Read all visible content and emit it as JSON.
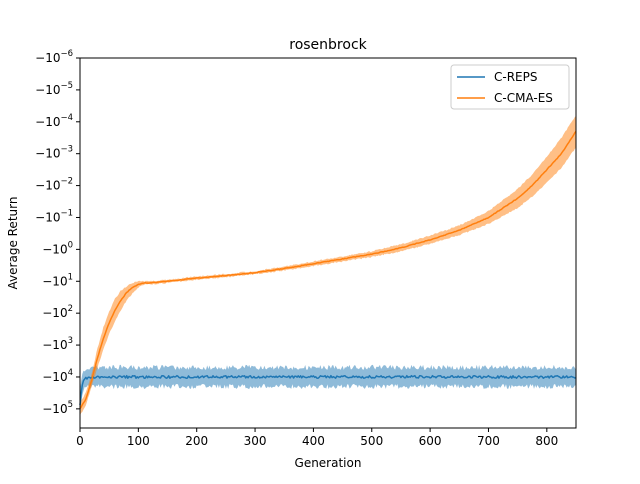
{
  "chart_data": {
    "type": "line",
    "title": "rosenbrock",
    "xlabel": "Generation",
    "ylabel": "Average Return",
    "y_scale": "symlog (negative), exponent axis: value = -10^e",
    "xlim": [
      0,
      850
    ],
    "ylim_exponent": [
      -6,
      5.6
    ],
    "xticks": [
      0,
      100,
      200,
      300,
      400,
      500,
      600,
      700,
      800
    ],
    "xtick_labels": [
      "0",
      "100",
      "200",
      "300",
      "400",
      "500",
      "600",
      "700",
      "800"
    ],
    "yticks_exponent": [
      -6,
      -5,
      -4,
      -3,
      -2,
      -1,
      0,
      1,
      2,
      3,
      4,
      5
    ],
    "ytick_labels": [
      {
        "base": "−10",
        "exp": "−6"
      },
      {
        "base": "−10",
        "exp": "−5"
      },
      {
        "base": "−10",
        "exp": "−4"
      },
      {
        "base": "−10",
        "exp": "−3"
      },
      {
        "base": "−10",
        "exp": "−2"
      },
      {
        "base": "−10",
        "exp": "−1"
      },
      {
        "base": "−10",
        "exp": "0"
      },
      {
        "base": "−10",
        "exp": "1"
      },
      {
        "base": "−10",
        "exp": "2"
      },
      {
        "base": "−10",
        "exp": "3"
      },
      {
        "base": "−10",
        "exp": "4"
      },
      {
        "base": "−10",
        "exp": "5"
      }
    ],
    "legend_position": "top-right",
    "grid": false,
    "series": [
      {
        "name": "C-REPS",
        "color": "#1f77b4",
        "band_color": "#1f77b4",
        "x": [
          0,
          3,
          6,
          10,
          15,
          25,
          50,
          100,
          200,
          300,
          400,
          500,
          600,
          700,
          800,
          850
        ],
        "y_exponent": [
          4.9,
          4.3,
          4.1,
          4.05,
          4.0,
          4.0,
          4.0,
          4.0,
          4.0,
          4.0,
          4.0,
          4.0,
          4.0,
          4.0,
          4.0,
          4.0
        ],
        "band_upper_exponent": [
          4.5,
          4.0,
          3.8,
          3.75,
          3.7,
          3.7,
          3.7,
          3.7,
          3.7,
          3.7,
          3.7,
          3.7,
          3.7,
          3.7,
          3.7,
          3.7
        ],
        "band_lower_exponent": [
          5.1,
          4.6,
          4.4,
          4.3,
          4.3,
          4.3,
          4.3,
          4.3,
          4.3,
          4.3,
          4.3,
          4.3,
          4.3,
          4.3,
          4.3,
          4.3
        ]
      },
      {
        "name": "C-CMA-ES",
        "color": "#ff7f0e",
        "band_color": "#ff7f0e",
        "x": [
          0,
          10,
          20,
          30,
          40,
          50,
          60,
          70,
          80,
          90,
          100,
          110,
          120,
          150,
          200,
          250,
          300,
          350,
          400,
          450,
          500,
          550,
          600,
          650,
          700,
          725,
          750,
          775,
          800,
          825,
          850
        ],
        "y_exponent": [
          5.0,
          4.7,
          4.1,
          3.4,
          2.8,
          2.3,
          1.9,
          1.6,
          1.35,
          1.2,
          1.1,
          1.05,
          1.05,
          1.0,
          0.9,
          0.82,
          0.73,
          0.6,
          0.45,
          0.3,
          0.15,
          -0.05,
          -0.3,
          -0.6,
          -1.0,
          -1.3,
          -1.6,
          -2.0,
          -2.5,
          -3.0,
          -3.7
        ],
        "band_upper_exponent": [
          4.8,
          4.5,
          3.9,
          3.1,
          2.45,
          1.95,
          1.55,
          1.3,
          1.15,
          1.05,
          1.0,
          1.0,
          1.0,
          0.95,
          0.85,
          0.77,
          0.68,
          0.54,
          0.38,
          0.22,
          0.06,
          -0.16,
          -0.43,
          -0.75,
          -1.2,
          -1.55,
          -1.9,
          -2.35,
          -2.9,
          -3.5,
          -4.2
        ],
        "band_lower_exponent": [
          5.2,
          4.9,
          4.3,
          3.7,
          3.15,
          2.65,
          2.25,
          1.9,
          1.6,
          1.38,
          1.2,
          1.1,
          1.1,
          1.05,
          0.95,
          0.87,
          0.78,
          0.66,
          0.52,
          0.38,
          0.24,
          0.06,
          -0.17,
          -0.45,
          -0.8,
          -1.05,
          -1.3,
          -1.65,
          -2.1,
          -2.55,
          -3.2
        ]
      }
    ]
  }
}
